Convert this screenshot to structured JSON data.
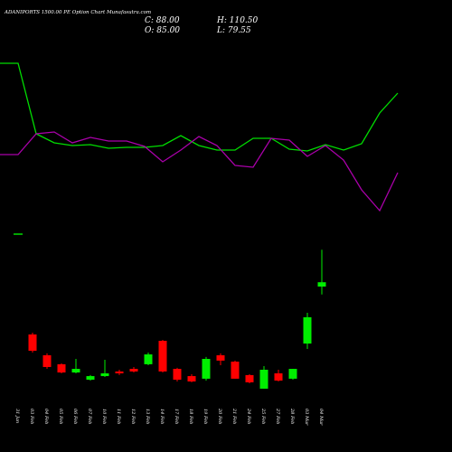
{
  "header": {
    "title": "ADANIPORTS 1500.00 PE Option Chart Munafasutra.com",
    "close": "C: 88.00",
    "high": "H: 110.50",
    "open": "O: 85.00",
    "low": "L: 79.55"
  },
  "chart_data": [
    {
      "type": "line",
      "ylim": [
        0,
        200
      ],
      "series": [
        {
          "color": "#00dd00",
          "values": [
            180,
            180,
            102,
            92,
            89,
            90,
            86,
            87,
            87,
            89,
            100,
            89,
            84,
            84,
            97,
            97,
            85,
            83,
            90,
            84,
            91,
            125,
            147
          ]
        },
        {
          "color": "#aa00aa",
          "values": [
            79,
            79,
            102,
            104,
            92,
            98,
            94,
            94,
            88,
            71,
            84,
            99,
            89,
            67,
            65,
            97,
            95,
            77,
            89,
            73,
            40,
            17,
            59
          ]
        }
      ]
    },
    {
      "type": "candlestick",
      "ylim": [
        5,
        125
      ],
      "up_color": "#00ee00",
      "down_color": "#ff0000",
      "categories": [
        "31 Jan",
        "03 Feb",
        "04 Feb",
        "05 Feb",
        "06 Feb",
        "07 Feb",
        "10 Feb",
        "11 Feb",
        "12 Feb",
        "13 Feb",
        "14 Feb",
        "17 Feb",
        "18 Feb",
        "19 Feb",
        "20 Feb",
        "21 Feb",
        "24 Feb",
        "25 Feb",
        "27 Feb",
        "28 Feb",
        "03 Mar",
        "04 Mar"
      ],
      "open": [
        null,
        51.9,
        37.5,
        31.3,
        25.6,
        20.6,
        23.1,
        26.3,
        28.1,
        31.3,
        47.5,
        28.1,
        23.1,
        21.3,
        37.5,
        33.1,
        23.8,
        14.4,
        25,
        21.3,
        45.6,
        85
      ],
      "high": [
        null,
        53.1,
        38.8,
        31.9,
        35,
        23.8,
        34.4,
        27.5,
        29.4,
        39.4,
        48.1,
        28.8,
        24.4,
        36.3,
        38.8,
        33.8,
        24.4,
        30,
        27.5,
        28.1,
        66.9,
        110.5
      ],
      "low": [
        null,
        39.4,
        28.1,
        25,
        25,
        20,
        22.5,
        23.8,
        25.6,
        30.6,
        25.6,
        19.4,
        18.8,
        20,
        30.6,
        21.3,
        18.1,
        14.4,
        19.4,
        20.6,
        41.9,
        79.55
      ],
      "close": [
        null,
        40.6,
        29.4,
        25.6,
        28.1,
        23.1,
        25,
        25,
        26.3,
        38.1,
        26.3,
        20.6,
        19.4,
        35,
        33.8,
        21.3,
        18.8,
        27.5,
        20,
        28.1,
        63.8,
        88
      ]
    }
  ]
}
